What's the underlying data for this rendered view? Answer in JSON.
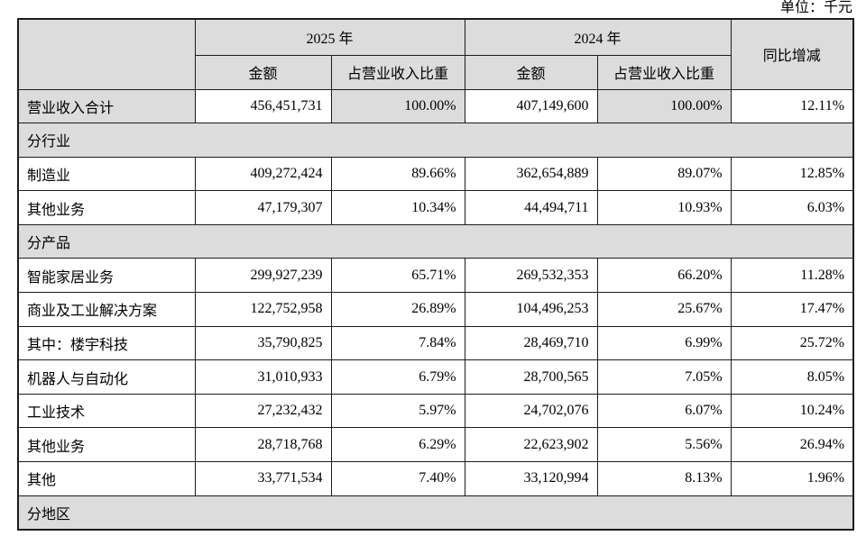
{
  "page": {
    "unit_label": "单位：千元"
  },
  "colors": {
    "section_bg": "#dcdcdc",
    "table_border": "#1c1c1c",
    "page_bg": "#ffffff"
  },
  "table": {
    "header": {
      "year_2025": "2025 年",
      "year_2024": "2024 年",
      "amount_2025": "金额",
      "ratio_2025": "占营业收入比重",
      "amount_2024": "金额",
      "ratio_2024": "占营业收入比重",
      "yoy": "同比增减"
    },
    "rows": [
      {
        "type": "data",
        "label": "营业收入合计",
        "v2025": "456,451,731",
        "p2025": "100.00%",
        "v2024": "407,149,600",
        "p2024": "100.00%",
        "yoy": "12.11%",
        "bold": false,
        "indent": false,
        "alt_shade": true
      },
      {
        "type": "section",
        "label": "分行业"
      },
      {
        "type": "data",
        "label": "制造业",
        "v2025": "409,272,424",
        "p2025": "89.66%",
        "v2024": "362,654,889",
        "p2024": "89.07%",
        "yoy": "12.85%",
        "bold": false,
        "indent": false,
        "alt_shade": false
      },
      {
        "type": "data",
        "label": "其他业务",
        "v2025": "47,179,307",
        "p2025": "10.34%",
        "v2024": "44,494,711",
        "p2024": "10.93%",
        "yoy": "6.03%",
        "bold": false,
        "indent": false,
        "alt_shade": false
      },
      {
        "type": "section",
        "label": "分产品"
      },
      {
        "type": "data",
        "label": "智能家居业务",
        "v2025": "299,927,239",
        "p2025": "65.71%",
        "v2024": "269,532,353",
        "p2024": "66.20%",
        "yoy": "11.28%",
        "bold": true,
        "indent": false,
        "alt_shade": false
      },
      {
        "type": "data",
        "label": "商业及工业解决方案",
        "v2025": "122,752,958",
        "p2025": "26.89%",
        "v2024": "104,496,253",
        "p2024": "25.67%",
        "yoy": "17.47%",
        "bold": true,
        "indent": false,
        "alt_shade": false
      },
      {
        "type": "data",
        "label": "其中：楼宇科技",
        "v2025": "35,790,825",
        "p2025": "7.84%",
        "v2024": "28,469,710",
        "p2024": "6.99%",
        "yoy": "25.72%",
        "bold": false,
        "indent": false,
        "alt_shade": false
      },
      {
        "type": "data",
        "label": "机器人与自动化",
        "v2025": "31,010,933",
        "p2025": "6.79%",
        "v2024": "28,700,565",
        "p2024": "7.05%",
        "yoy": "8.05%",
        "bold": false,
        "indent": true,
        "alt_shade": false
      },
      {
        "type": "data",
        "label": "工业技术",
        "v2025": "27,232,432",
        "p2025": "5.97%",
        "v2024": "24,702,076",
        "p2024": "6.07%",
        "yoy": "10.24%",
        "bold": false,
        "indent": true,
        "alt_shade": false
      },
      {
        "type": "data",
        "label": "其他业务",
        "v2025": "28,718,768",
        "p2025": "6.29%",
        "v2024": "22,623,902",
        "p2024": "5.56%",
        "yoy": "26.94%",
        "bold": false,
        "indent": true,
        "alt_shade": false
      },
      {
        "type": "data",
        "label": "其他",
        "v2025": "33,771,534",
        "p2025": "7.40%",
        "v2024": "33,120,994",
        "p2024": "8.13%",
        "yoy": "1.96%",
        "bold": true,
        "indent": false,
        "alt_shade": false
      },
      {
        "type": "section",
        "label": "分地区"
      }
    ]
  }
}
